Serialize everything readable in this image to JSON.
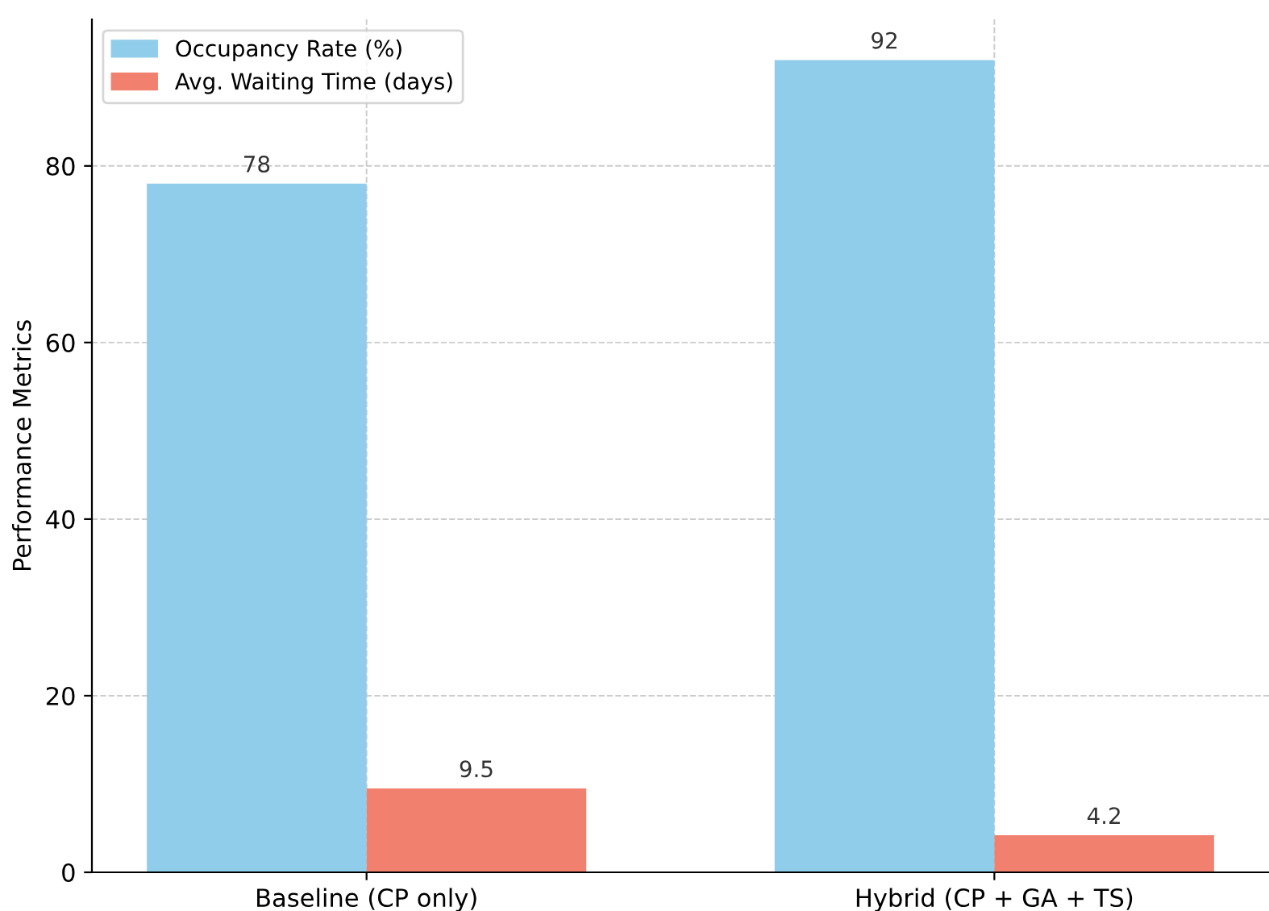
{
  "chart_data": {
    "type": "bar",
    "ylabel": "Performance Metrics",
    "categories": [
      "Baseline (CP only)",
      "Hybrid (CP + GA + TS)"
    ],
    "series": [
      {
        "name": "Occupancy Rate (%)",
        "color": "#8fcdea",
        "values": [
          78,
          92
        ]
      },
      {
        "name": "Avg. Waiting Time (days)",
        "color": "#f2806f",
        "values": [
          9.5,
          4.2
        ]
      }
    ],
    "ylim": [
      0,
      96.6
    ],
    "yticks": [
      0,
      20,
      40,
      60,
      80
    ],
    "grid": true,
    "legend": "top left",
    "data_labels": true
  }
}
